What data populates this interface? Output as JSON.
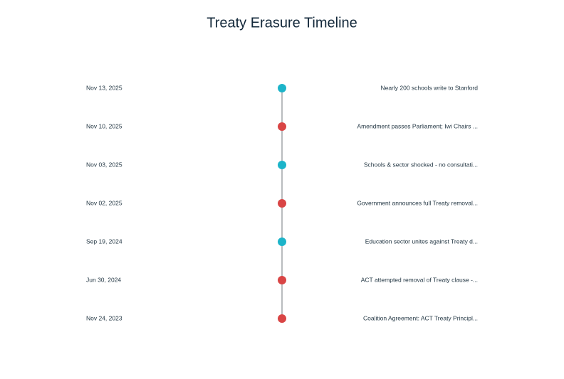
{
  "title": "Treaty Erasure Timeline",
  "events": [
    {
      "date": "Nov 13, 2025",
      "label": "Nearly 200 schools write to Stanford",
      "color": "#1cb4c9"
    },
    {
      "date": "Nov 10, 2025",
      "label": "Amendment passes Parliament; Iwi Chairs ...",
      "color": "#d94545"
    },
    {
      "date": "Nov 03, 2025",
      "label": "Schools & sector shocked - no consultati...",
      "color": "#1cb4c9"
    },
    {
      "date": "Nov 02, 2025",
      "label": "Government announces full Treaty removal...",
      "color": "#d94545"
    },
    {
      "date": "Sep 19, 2024",
      "label": "Education sector unites against Treaty d...",
      "color": "#1cb4c9"
    },
    {
      "date": "Jun 30, 2024",
      "label": "ACT attempted removal of Treaty clause -...",
      "color": "#d94545"
    },
    {
      "date": "Nov 24, 2023",
      "label": "Coalition Agreement: ACT Treaty Principl...",
      "color": "#d94545"
    }
  ]
}
